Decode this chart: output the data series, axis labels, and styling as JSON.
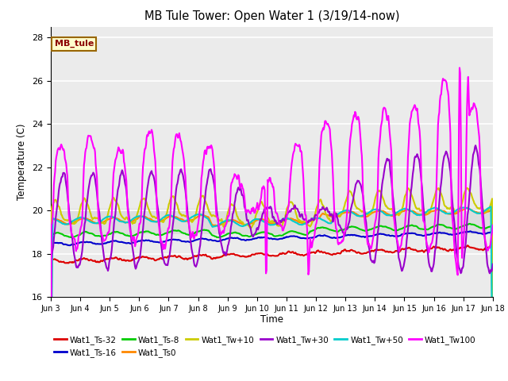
{
  "title": "MB Tule Tower: Open Water 1 (3/19/14-now)",
  "xlabel": "Time",
  "ylabel": "Temperature (C)",
  "ylim": [
    16,
    28.5
  ],
  "yticks": [
    16,
    18,
    20,
    22,
    24,
    26,
    28
  ],
  "xlim": [
    0,
    360
  ],
  "xtick_labels": [
    "Jun 3",
    "Jun 4",
    "Jun 5",
    "Jun 6",
    "Jun 7",
    "Jun 8",
    "Jun 9",
    "Jun 10",
    "Jun 11",
    "Jun 12",
    "Jun 13",
    "Jun 14",
    "Jun 15",
    "Jun 16",
    "Jun 17",
    "Jun 18"
  ],
  "xtick_positions": [
    0,
    24,
    48,
    72,
    96,
    120,
    144,
    168,
    192,
    216,
    240,
    264,
    288,
    312,
    336,
    360
  ],
  "series": {
    "Wat1_Ts-32": {
      "color": "#dd0000",
      "lw": 1.5
    },
    "Wat1_Ts-16": {
      "color": "#0000cc",
      "lw": 1.5
    },
    "Wat1_Ts-8": {
      "color": "#00cc00",
      "lw": 1.5
    },
    "Wat1_Ts0": {
      "color": "#ff8800",
      "lw": 1.5
    },
    "Wat1_Tw+10": {
      "color": "#cccc00",
      "lw": 1.5
    },
    "Wat1_Tw+30": {
      "color": "#9900cc",
      "lw": 1.5
    },
    "Wat1_Tw+50": {
      "color": "#00cccc",
      "lw": 1.5
    },
    "Wat1_Tw100": {
      "color": "#ff00ff",
      "lw": 1.5
    }
  },
  "label_box": {
    "text": "MB_tule",
    "bg": "#ffffcc",
    "border": "#996600",
    "text_color": "#8B0000"
  },
  "band_color": "#d8d8d8",
  "bg_color": "#ebebeb"
}
